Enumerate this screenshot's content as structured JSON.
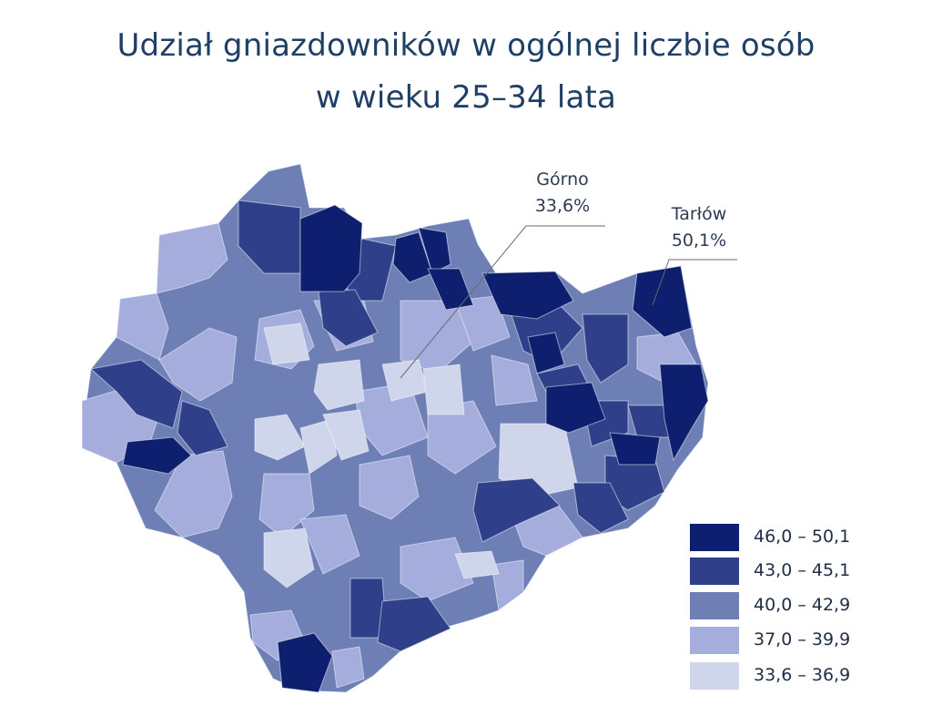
{
  "title": {
    "line1": "Udział gniazdowników w ogólnej liczbie osób",
    "line2": "w wieku 25–34 lata"
  },
  "callouts": [
    {
      "name": "Górno",
      "value": "33,6%"
    },
    {
      "name": "Tarłów",
      "value": "50,1%"
    }
  ],
  "legend": [
    {
      "label": "46,0 – 50,1",
      "color": "#0d1f6e"
    },
    {
      "label": "43,0 – 45,1",
      "color": "#2f3f8a"
    },
    {
      "label": "40,0 – 42,9",
      "color": "#6e7fb6"
    },
    {
      "label": "37,0 – 39,9",
      "color": "#a4addb"
    },
    {
      "label": "33,6 – 36,9",
      "color": "#cfd5ea"
    }
  ]
}
